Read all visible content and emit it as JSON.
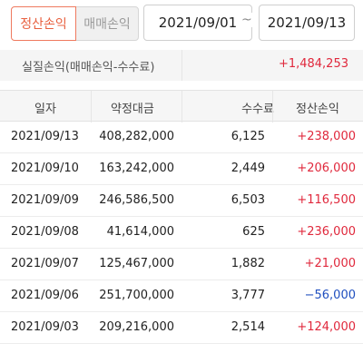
{
  "filter": {
    "tab_active": "정산손익",
    "tab_inactive": "매매손익",
    "start_date": "2021/09/01",
    "separator": "~",
    "end_date": "2021/09/13"
  },
  "summary": {
    "label": "실질손익(매매손익-수수료)",
    "value": "+1,484,253"
  },
  "table": {
    "headers": [
      "일자",
      "약정대금",
      "수수료",
      "정산손익"
    ],
    "rows": [
      {
        "date": "2021/09/13",
        "amount": "408,282,000",
        "fee": "6,125",
        "pnl": "+238,000"
      },
      {
        "date": "2021/09/10",
        "amount": "163,242,000",
        "fee": "2,449",
        "pnl": "+206,000"
      },
      {
        "date": "2021/09/09",
        "amount": "246,586,500",
        "fee": "6,503",
        "pnl": "+116,500"
      },
      {
        "date": "2021/09/08",
        "amount": "41,614,000",
        "fee": "625",
        "pnl": "+236,000"
      },
      {
        "date": "2021/09/07",
        "amount": "125,467,000",
        "fee": "1,882",
        "pnl": "+21,000"
      },
      {
        "date": "2021/09/06",
        "amount": "251,700,000",
        "fee": "3,777",
        "pnl": "−56,000"
      },
      {
        "date": "2021/09/03",
        "amount": "209,216,000",
        "fee": "2,514",
        "pnl": "+124,000"
      }
    ]
  },
  "colors": {
    "positive": "#e0283c",
    "negative": "#1f4fbf",
    "accent": "#e8603f"
  }
}
